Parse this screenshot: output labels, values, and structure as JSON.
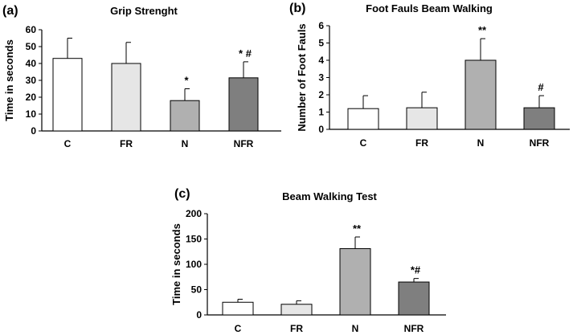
{
  "colors": {
    "C": "#ffffff",
    "FR": "#e6e6e6",
    "N": "#b0b0b0",
    "NFR": "#7f7f7f",
    "stroke": "#000000"
  },
  "chart_data": [
    {
      "type": "bar",
      "panel": "(a)",
      "title": "Grip Strenght",
      "xlabel": "",
      "ylabel": "Time in seconds",
      "ylim": [
        0,
        60
      ],
      "yticks": [
        0,
        10,
        20,
        30,
        40,
        50,
        60
      ],
      "ytick_labels": [
        "0",
        "10",
        "20",
        "30",
        "40",
        "50",
        "60"
      ],
      "categories": [
        "C",
        "FR",
        "N",
        "NFR"
      ],
      "values": [
        43,
        40,
        18,
        31.5
      ],
      "errors": [
        12,
        12.5,
        7,
        9.5
      ],
      "significance": [
        "",
        "",
        "*",
        "* #"
      ]
    },
    {
      "type": "bar",
      "panel": "(b)",
      "title": "Foot Fauls Beam Walking",
      "xlabel": "",
      "ylabel": "Number of Foot Fauls",
      "ylim": [
        0,
        6
      ],
      "yticks": [
        0,
        1,
        2,
        3,
        4,
        5,
        6
      ],
      "ytick_labels": [
        "0",
        "1",
        "2",
        "3",
        "4",
        "5",
        "6"
      ],
      "categories": [
        "C",
        "FR",
        "N",
        "NFR"
      ],
      "values": [
        1.2,
        1.25,
        4,
        1.25
      ],
      "errors": [
        0.75,
        0.9,
        1.25,
        0.7
      ],
      "significance": [
        "",
        "",
        "**",
        "#"
      ]
    },
    {
      "type": "bar",
      "panel": "(c)",
      "title": "Beam Walking Test",
      "xlabel": "",
      "ylabel": "Time in seconds",
      "ylim": [
        0,
        200
      ],
      "yticks": [
        0,
        50,
        100,
        150,
        200
      ],
      "ytick_labels": [
        "0",
        "50",
        "100",
        "150",
        "200"
      ],
      "categories": [
        "C",
        "FR",
        "N",
        "NFR"
      ],
      "values": [
        25,
        21,
        131,
        65
      ],
      "errors": [
        6,
        7,
        23,
        7
      ],
      "significance": [
        "",
        "",
        "**",
        "*#"
      ]
    }
  ]
}
